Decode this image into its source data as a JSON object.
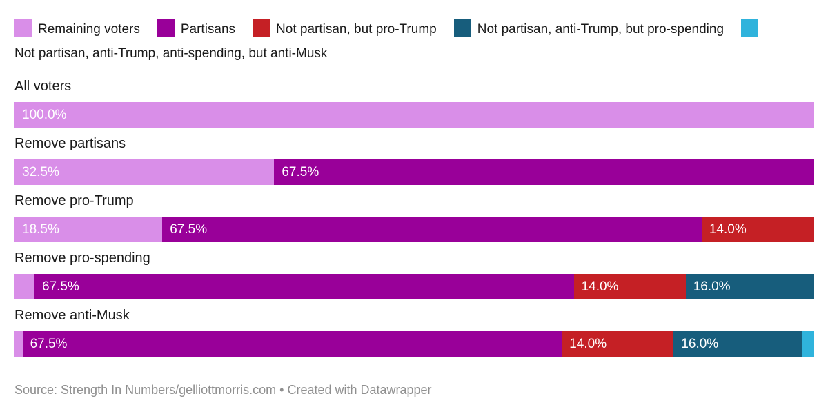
{
  "legend": {
    "items": [
      {
        "label": "Remaining voters",
        "color": "#d98ee8"
      },
      {
        "label": "Partisans",
        "color": "#990099"
      },
      {
        "label": "Not partisan, but pro-Trump",
        "color": "#c52025"
      },
      {
        "label": "Not partisan, anti-Trump, but pro-spending",
        "color": "#175d7c"
      },
      {
        "label": "Not partisan, anti-Trump, anti-spending, but anti-Musk",
        "color": "#2fb3dc"
      }
    ]
  },
  "chart_data": {
    "type": "bar",
    "orientation": "horizontal",
    "stacked": true,
    "unit": "%",
    "xlim": [
      0,
      100
    ],
    "grid": false,
    "legend_position": "top",
    "categories": [
      "All voters",
      "Remove partisans",
      "Remove pro-Trump",
      "Remove pro-spending",
      "Remove anti-Musk"
    ],
    "series": [
      {
        "name": "Remaining voters",
        "color": "#d98ee8",
        "values": [
          100.0,
          32.5,
          18.5,
          2.5,
          1.0
        ]
      },
      {
        "name": "Partisans",
        "color": "#990099",
        "values": [
          0,
          67.5,
          67.5,
          67.5,
          67.5
        ]
      },
      {
        "name": "Not partisan, but pro-Trump",
        "color": "#c52025",
        "values": [
          0,
          0,
          14.0,
          14.0,
          14.0
        ]
      },
      {
        "name": "Not partisan, anti-Trump, but pro-spending",
        "color": "#175d7c",
        "values": [
          0,
          0,
          0,
          16.0,
          16.0
        ]
      },
      {
        "name": "Not partisan, anti-Trump, anti-spending, but anti-Musk",
        "color": "#2fb3dc",
        "values": [
          0,
          0,
          0,
          0,
          1.5
        ]
      }
    ],
    "rows": [
      {
        "label": "All voters",
        "segments": [
          {
            "series": "Remaining voters",
            "value": 100.0,
            "text": "100.0%"
          }
        ]
      },
      {
        "label": "Remove partisans",
        "segments": [
          {
            "series": "Remaining voters",
            "value": 32.5,
            "text": "32.5%"
          },
          {
            "series": "Partisans",
            "value": 67.5,
            "text": "67.5%"
          }
        ]
      },
      {
        "label": "Remove pro-Trump",
        "segments": [
          {
            "series": "Remaining voters",
            "value": 18.5,
            "text": "18.5%"
          },
          {
            "series": "Partisans",
            "value": 67.5,
            "text": "67.5%"
          },
          {
            "series": "Not partisan, but pro-Trump",
            "value": 14.0,
            "text": "14.0%"
          }
        ]
      },
      {
        "label": "Remove pro-spending",
        "segments": [
          {
            "series": "Remaining voters",
            "value": 2.5,
            "text": ""
          },
          {
            "series": "Partisans",
            "value": 67.5,
            "text": "67.5%"
          },
          {
            "series": "Not partisan, but pro-Trump",
            "value": 14.0,
            "text": "14.0%"
          },
          {
            "series": "Not partisan, anti-Trump, but pro-spending",
            "value": 16.0,
            "text": "16.0%"
          }
        ]
      },
      {
        "label": "Remove anti-Musk",
        "segments": [
          {
            "series": "Remaining voters",
            "value": 1.0,
            "text": ""
          },
          {
            "series": "Partisans",
            "value": 67.5,
            "text": "67.5%"
          },
          {
            "series": "Not partisan, but pro-Trump",
            "value": 14.0,
            "text": "14.0%"
          },
          {
            "series": "Not partisan, anti-Trump, but pro-spending",
            "value": 16.0,
            "text": "16.0%"
          },
          {
            "series": "Not partisan, anti-Trump, anti-spending, but anti-Musk",
            "value": 1.5,
            "text": ""
          }
        ]
      }
    ]
  },
  "footer": {
    "text": "Source: Strength In Numbers/gelliottmorris.com • Created with Datawrapper"
  },
  "colors": {
    "text": "#1a1a1a",
    "bar_label": "#ffffff",
    "footer_text": "#8f8f8f",
    "background": "#ffffff"
  }
}
